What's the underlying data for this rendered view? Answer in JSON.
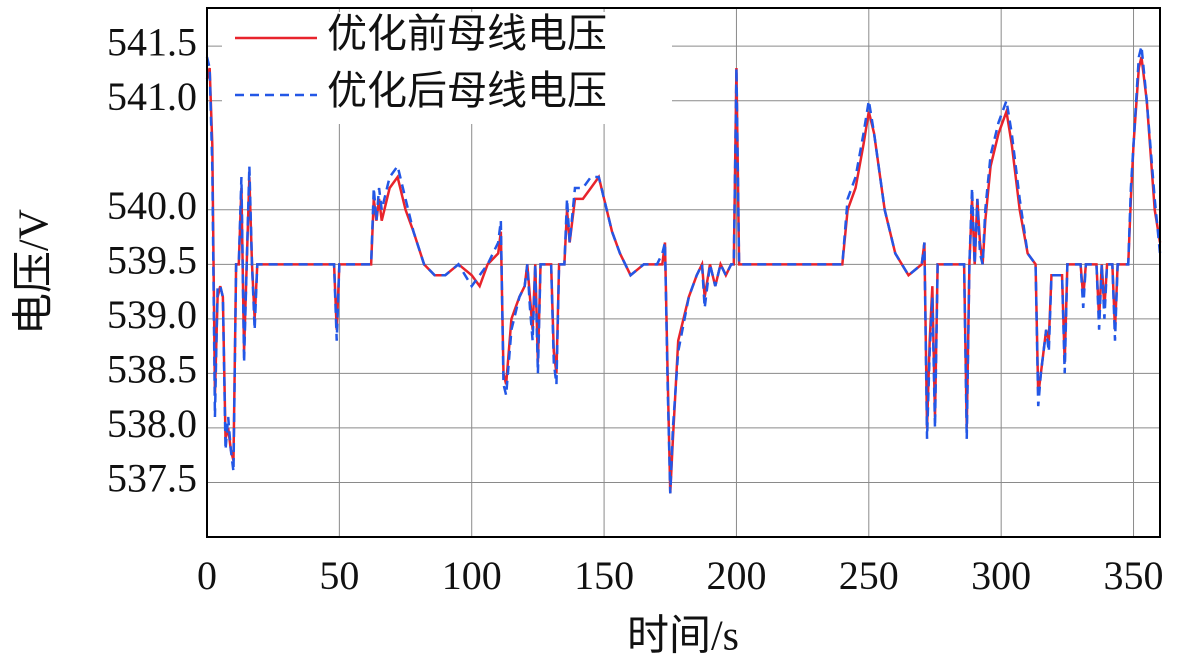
{
  "chart_data": {
    "type": "line",
    "x_label": "时间/s",
    "y_label": "电压/V",
    "xlim": [
      0,
      360
    ],
    "ylim": [
      537.0,
      541.85
    ],
    "xticks": [
      0,
      50,
      100,
      150,
      200,
      250,
      300,
      350
    ],
    "yticks": [
      537.5,
      {
        "value": 538,
        "label": "538.0"
      },
      538.5,
      {
        "value": 539,
        "label": "539.0"
      },
      539.5,
      {
        "value": 540,
        "label": "540.0"
      },
      {
        "value": 541,
        "label": "541.0"
      },
      541.5
    ],
    "grid": true,
    "legend": "upper left",
    "x": [
      0,
      1,
      2,
      3,
      4,
      5,
      6,
      7,
      8,
      9,
      10,
      11,
      12,
      13,
      14,
      15,
      16,
      17,
      18,
      19,
      48,
      49,
      50,
      62,
      63,
      64,
      65,
      66,
      67,
      69,
      72,
      75,
      78,
      82,
      86,
      90,
      95,
      100,
      103,
      106,
      110,
      111,
      112,
      113,
      115,
      118,
      120,
      121,
      122,
      123,
      124,
      125,
      126,
      130,
      131,
      132,
      133,
      135,
      136,
      137,
      139,
      142,
      145,
      148,
      150,
      153,
      156,
      160,
      165,
      170,
      172,
      173,
      174,
      175,
      176,
      178,
      182,
      185,
      187,
      188,
      190,
      192,
      194,
      196,
      198,
      199,
      200,
      201,
      205,
      240,
      242,
      245,
      248,
      250,
      252,
      256,
      260,
      265,
      270,
      271,
      272,
      273,
      274,
      275,
      276,
      286,
      287,
      288,
      289,
      290,
      291,
      292,
      293,
      294,
      296,
      299,
      302,
      304,
      307,
      310,
      313,
      314,
      315,
      316,
      317,
      318,
      319,
      323,
      324,
      325,
      330,
      331,
      332,
      336,
      337,
      338,
      339,
      340,
      342,
      343,
      344,
      348,
      349,
      350,
      352,
      353,
      355,
      358,
      360
    ],
    "series": [
      {
        "name": "优化前母线电压",
        "color": "#e8242c",
        "dash": "solid",
        "values": [
          541.2,
          541.3,
          540.6,
          538.3,
          539.2,
          539.3,
          539.2,
          537.9,
          538.0,
          537.8,
          537.7,
          539.5,
          539.5,
          540.2,
          538.7,
          539.5,
          540.3,
          539.5,
          539.0,
          539.5,
          539.5,
          538.9,
          539.5,
          539.5,
          540.1,
          539.9,
          540.1,
          539.9,
          540.0,
          540.2,
          540.3,
          540.0,
          539.8,
          539.5,
          539.4,
          539.4,
          539.5,
          539.4,
          539.3,
          539.5,
          539.6,
          539.8,
          538.5,
          538.4,
          539.0,
          539.2,
          539.3,
          539.5,
          539.2,
          538.9,
          539.5,
          538.6,
          539.5,
          539.5,
          538.7,
          538.5,
          539.5,
          539.5,
          540.0,
          539.7,
          540.1,
          540.1,
          540.2,
          540.3,
          540.1,
          539.8,
          539.6,
          539.4,
          539.5,
          539.5,
          539.5,
          539.7,
          538.5,
          537.4,
          537.9,
          538.8,
          539.2,
          539.4,
          539.5,
          539.2,
          539.5,
          539.3,
          539.5,
          539.4,
          539.5,
          539.5,
          541.3,
          539.5,
          539.5,
          539.5,
          540.0,
          540.2,
          540.6,
          540.9,
          540.7,
          540.0,
          539.6,
          539.4,
          539.5,
          539.7,
          538.0,
          538.8,
          539.3,
          538.1,
          539.5,
          539.5,
          538.0,
          539.5,
          540.1,
          539.5,
          540.1,
          539.7,
          539.5,
          539.9,
          540.4,
          540.7,
          540.9,
          540.6,
          540.0,
          539.6,
          539.5,
          538.3,
          538.5,
          538.7,
          538.9,
          538.8,
          539.4,
          539.4,
          538.6,
          539.5,
          539.5,
          539.2,
          539.5,
          539.5,
          539.0,
          539.5,
          539.1,
          539.5,
          539.5,
          538.9,
          539.5,
          539.5,
          540.1,
          540.6,
          541.3,
          541.4,
          541.0,
          540.0,
          539.7
        ]
      },
      {
        "name": "优化后母线电压",
        "color": "#2357e6",
        "dash": "dashed",
        "values": [
          541.4,
          541.3,
          540.4,
          538.1,
          539.3,
          539.3,
          539.2,
          537.8,
          538.1,
          537.8,
          537.6,
          539.5,
          539.5,
          540.3,
          538.6,
          539.5,
          540.4,
          539.5,
          538.9,
          539.5,
          539.5,
          538.8,
          539.5,
          539.5,
          540.2,
          539.9,
          540.2,
          540.0,
          540.1,
          540.3,
          540.4,
          540.1,
          539.8,
          539.5,
          539.4,
          539.4,
          539.5,
          539.3,
          539.4,
          539.5,
          539.7,
          539.9,
          538.4,
          538.3,
          538.9,
          539.2,
          539.3,
          539.5,
          539.1,
          538.8,
          539.5,
          538.5,
          539.5,
          539.5,
          538.6,
          538.4,
          539.5,
          539.5,
          540.1,
          539.7,
          540.2,
          540.2,
          540.3,
          540.3,
          540.1,
          539.8,
          539.6,
          539.4,
          539.5,
          539.5,
          539.6,
          539.7,
          538.4,
          537.4,
          538.0,
          538.7,
          539.2,
          539.4,
          539.5,
          539.1,
          539.5,
          539.3,
          539.5,
          539.4,
          539.5,
          539.5,
          541.3,
          539.5,
          539.5,
          539.5,
          540.1,
          540.3,
          540.7,
          541.0,
          540.7,
          540.0,
          539.6,
          539.4,
          539.5,
          539.7,
          537.9,
          538.7,
          539.2,
          538.0,
          539.5,
          539.5,
          537.9,
          539.5,
          540.2,
          539.5,
          540.1,
          539.6,
          539.5,
          540.0,
          540.5,
          540.8,
          541.0,
          540.7,
          540.1,
          539.6,
          539.5,
          538.2,
          538.5,
          538.7,
          538.9,
          538.7,
          539.4,
          539.4,
          538.5,
          539.5,
          539.5,
          539.1,
          539.5,
          539.5,
          538.9,
          539.5,
          539.0,
          539.5,
          539.5,
          538.8,
          539.5,
          539.5,
          540.2,
          540.6,
          541.4,
          541.5,
          541.0,
          540.1,
          539.6
        ]
      }
    ]
  }
}
